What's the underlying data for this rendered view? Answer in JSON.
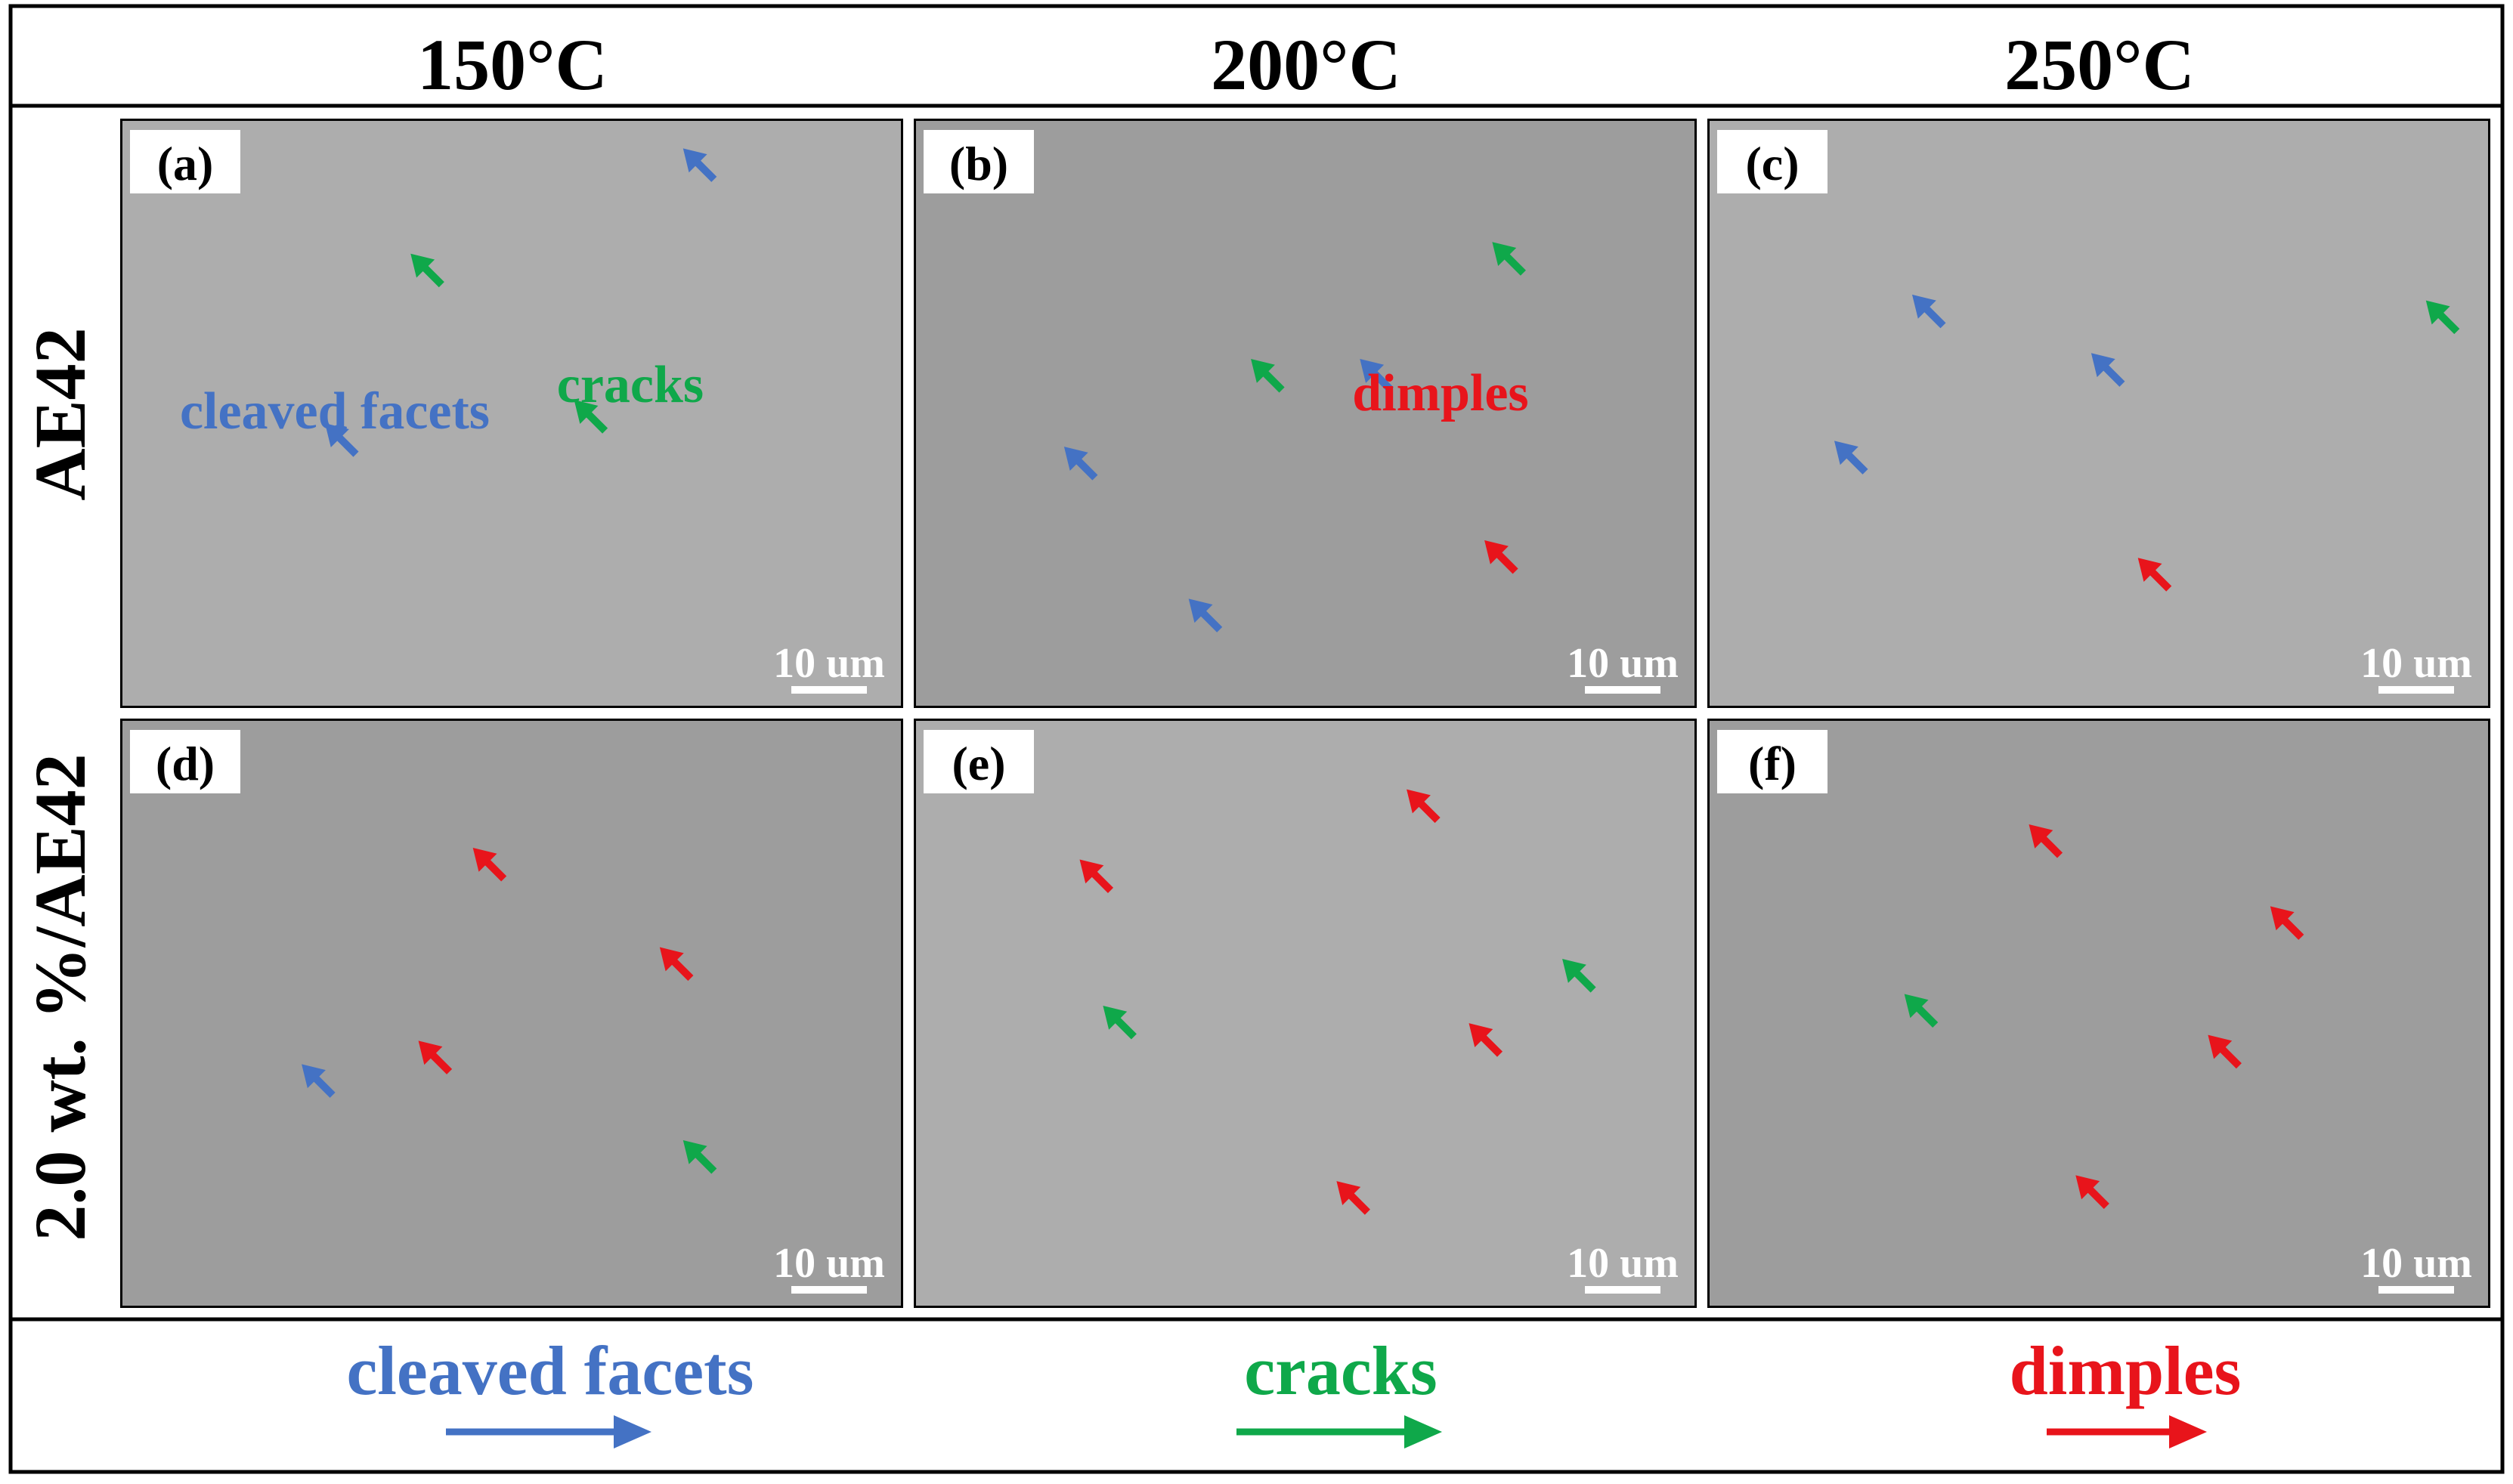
{
  "columns": [
    "150°C",
    "200°C",
    "250°C"
  ],
  "rows": [
    "AE42",
    "2.0 wt. %/AE42"
  ],
  "panels": [
    {
      "id": "a",
      "label": "(a)",
      "scale": "10 um",
      "annotations": [
        {
          "text": "cleaved facets",
          "color": "#4472c4"
        },
        {
          "text": "cracks",
          "color": "#0fa84a"
        }
      ],
      "arrows": [
        {
          "type": "cleaved facets",
          "color": "#4472c4",
          "fx": 0.76,
          "fy": 0.1
        },
        {
          "type": "cracks",
          "color": "#0fa84a",
          "fx": 0.41,
          "fy": 0.28
        },
        {
          "type": "cleaved facets",
          "color": "#4472c4",
          "fx": 0.3,
          "fy": 0.57
        },
        {
          "type": "cracks",
          "color": "#0fa84a",
          "fx": 0.62,
          "fy": 0.53
        }
      ]
    },
    {
      "id": "b",
      "label": "(b)",
      "scale": "10 um",
      "annotations": [
        {
          "text": "dimples",
          "color": "#e8141b"
        }
      ],
      "arrows": [
        {
          "type": "cracks",
          "color": "#0fa84a",
          "fx": 0.78,
          "fy": 0.26
        },
        {
          "type": "cracks",
          "color": "#0fa84a",
          "fx": 0.47,
          "fy": 0.46
        },
        {
          "type": "cleaved facets",
          "color": "#4472c4",
          "fx": 0.61,
          "fy": 0.46
        },
        {
          "type": "cleaved facets",
          "color": "#4472c4",
          "fx": 0.23,
          "fy": 0.61
        },
        {
          "type": "dimples",
          "color": "#e8141b",
          "fx": 0.77,
          "fy": 0.77
        },
        {
          "type": "cleaved facets",
          "color": "#4472c4",
          "fx": 0.39,
          "fy": 0.87
        }
      ]
    },
    {
      "id": "c",
      "label": "(c)",
      "scale": "10 um",
      "annotations": [],
      "arrows": [
        {
          "type": "cleaved facets",
          "color": "#4472c4",
          "fx": 0.3,
          "fy": 0.35
        },
        {
          "type": "cracks",
          "color": "#0fa84a",
          "fx": 0.96,
          "fy": 0.36
        },
        {
          "type": "cleaved facets",
          "color": "#4472c4",
          "fx": 0.53,
          "fy": 0.45
        },
        {
          "type": "cleaved facets",
          "color": "#4472c4",
          "fx": 0.2,
          "fy": 0.6
        },
        {
          "type": "dimples",
          "color": "#e8141b",
          "fx": 0.59,
          "fy": 0.8
        }
      ]
    },
    {
      "id": "d",
      "label": "(d)",
      "scale": "10 um",
      "annotations": [],
      "arrows": [
        {
          "type": "dimples",
          "color": "#e8141b",
          "fx": 0.49,
          "fy": 0.27
        },
        {
          "type": "dimples",
          "color": "#e8141b",
          "fx": 0.73,
          "fy": 0.44
        },
        {
          "type": "dimples",
          "color": "#e8141b",
          "fx": 0.42,
          "fy": 0.6
        },
        {
          "type": "cleaved facets",
          "color": "#4472c4",
          "fx": 0.27,
          "fy": 0.64
        },
        {
          "type": "cracks",
          "color": "#0fa84a",
          "fx": 0.76,
          "fy": 0.77
        }
      ]
    },
    {
      "id": "e",
      "label": "(e)",
      "scale": "10 um",
      "annotations": [],
      "arrows": [
        {
          "type": "dimples",
          "color": "#e8141b",
          "fx": 0.67,
          "fy": 0.17
        },
        {
          "type": "dimples",
          "color": "#e8141b",
          "fx": 0.25,
          "fy": 0.29
        },
        {
          "type": "cracks",
          "color": "#0fa84a",
          "fx": 0.87,
          "fy": 0.46
        },
        {
          "type": "cracks",
          "color": "#0fa84a",
          "fx": 0.28,
          "fy": 0.54
        },
        {
          "type": "dimples",
          "color": "#e8141b",
          "fx": 0.75,
          "fy": 0.57
        },
        {
          "type": "dimples",
          "color": "#e8141b",
          "fx": 0.58,
          "fy": 0.84
        }
      ]
    },
    {
      "id": "f",
      "label": "(f)",
      "scale": "10 um",
      "annotations": [],
      "arrows": [
        {
          "type": "dimples",
          "color": "#e8141b",
          "fx": 0.45,
          "fy": 0.23
        },
        {
          "type": "dimples",
          "color": "#e8141b",
          "fx": 0.76,
          "fy": 0.37
        },
        {
          "type": "cracks",
          "color": "#0fa84a",
          "fx": 0.29,
          "fy": 0.52
        },
        {
          "type": "dimples",
          "color": "#e8141b",
          "fx": 0.68,
          "fy": 0.59
        },
        {
          "type": "dimples",
          "color": "#e8141b",
          "fx": 0.51,
          "fy": 0.83
        }
      ]
    }
  ],
  "legend": [
    {
      "text": "cleaved facets",
      "color": "#4472c4"
    },
    {
      "text": "cracks",
      "color": "#0fa84a"
    },
    {
      "text": "dimples",
      "color": "#e8141b"
    }
  ]
}
